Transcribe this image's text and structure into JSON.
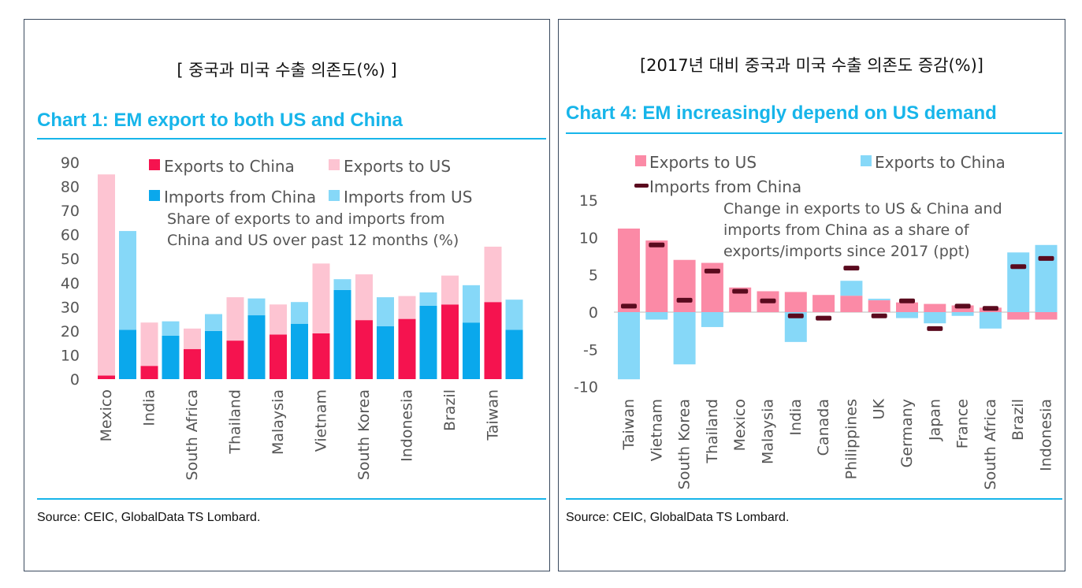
{
  "left": {
    "korean_title": "[  중국과 미국 수출 의존도(%) ]",
    "chart_title": "Chart 1: EM export to both US and China",
    "source": "Source: CEIC, GlobalData TS Lombard.",
    "colors": {
      "exports_china": "#f5134f",
      "exports_us": "#fdc4d2",
      "imports_china": "#0aa8ec",
      "imports_us": "#86d8f8"
    },
    "chart_data": {
      "type": "bar",
      "subtype": "stacked pairs",
      "categories": [
        "Mexico",
        "India",
        "South Africa",
        "Thailand",
        "Malaysia",
        "Vietnam",
        "South Korea",
        "Indonesia",
        "Brazil",
        "Taiwan"
      ],
      "series": [
        {
          "name": "Exports to China",
          "values": [
            1.5,
            5.5,
            12.5,
            16,
            18.5,
            19,
            24.5,
            25,
            31,
            32
          ]
        },
        {
          "name": "Exports to US",
          "values": [
            83.5,
            18,
            8.5,
            18,
            12.5,
            29,
            19,
            9.5,
            12,
            23
          ]
        },
        {
          "name": "Imports from China",
          "values": [
            20.5,
            18,
            20,
            26.5,
            23,
            37,
            22,
            30.5,
            23.5,
            20.5
          ]
        },
        {
          "name": "Imports from US",
          "values": [
            41,
            6,
            7,
            7,
            9,
            4.5,
            12,
            5.5,
            15.5,
            12.5
          ]
        }
      ],
      "legend": [
        "Exports to China",
        "Exports to US",
        "Imports from China",
        "Imports from US"
      ],
      "ylim": [
        0,
        90
      ],
      "yticks": [
        "90",
        "80",
        "70",
        "60",
        "50",
        "40",
        "30",
        "20",
        "10",
        "0"
      ],
      "annotation": [
        "Share of exports to and imports from",
        "China and US over past 12 months (%)"
      ]
    }
  },
  "right": {
    "korean_title": "[2017년 대비 중국과 미국 수출 의존도 증감(%)]",
    "chart_title": "Chart 4: EM increasingly depend on US demand",
    "source": "Source: CEIC, GlobalData TS Lombard.",
    "colors": {
      "exports_us": "#fb8aa6",
      "exports_china": "#86d8f8",
      "imports_china": "#5a0a1e"
    },
    "chart_data": {
      "type": "bar",
      "subtype": "stacked with markers",
      "categories": [
        "Taiwan",
        "Vietnam",
        "South Korea",
        "Thailand",
        "Mexico",
        "Malaysia",
        "India",
        "Canada",
        "Philippines",
        "UK",
        "Germany",
        "Japan",
        "France",
        "South Africa",
        "Brazil",
        "Indonesia"
      ],
      "series": [
        {
          "name": "Exports to US",
          "values": [
            11.2,
            9.6,
            7,
            6.6,
            3.3,
            2.8,
            2.7,
            2.3,
            2.2,
            1.6,
            1.3,
            1.1,
            0.9,
            0.6,
            -1,
            -1
          ]
        },
        {
          "name": "Exports to China",
          "values": [
            -9,
            -1,
            -7,
            -2,
            0,
            0,
            -4,
            0,
            2,
            0.2,
            -0.8,
            -1.5,
            -0.5,
            -2.2,
            8,
            9
          ]
        },
        {
          "name": "Imports from China",
          "values": [
            0.8,
            9,
            1.6,
            5.5,
            2.8,
            1.5,
            -0.5,
            -0.8,
            5.9,
            -0.5,
            1.5,
            -2.2,
            0.8,
            0.5,
            6.1,
            7.2
          ]
        }
      ],
      "legend": [
        "Exports to US",
        "Exports to China",
        "Imports from China"
      ],
      "ylim": [
        -10,
        15
      ],
      "yticks": [
        "15",
        "10",
        "5",
        "0",
        "-5",
        "-10"
      ],
      "annotation": [
        "Change in exports to US & China and",
        "imports from China as a share of",
        "exports/imports since 2017 (ppt)"
      ]
    }
  }
}
